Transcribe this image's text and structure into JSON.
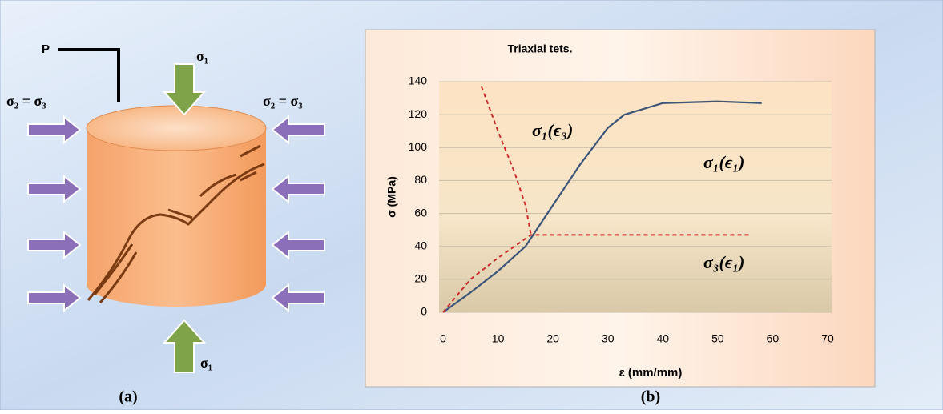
{
  "diagram": {
    "pressure_label": "P",
    "top_load": "σ₁",
    "bottom_load": "σ₁",
    "left_confining": "σ₂ =  σ₃",
    "right_confining": "σ₂ =  σ₃"
  },
  "captions": [
    "(a)",
    "(b)"
  ],
  "chart_data": {
    "type": "line",
    "title": "Triaxial tets.",
    "xlabel": "ε (mm/mm)",
    "ylabel": "σ (MPa)",
    "xlim": [
      0,
      70
    ],
    "xticks": [
      0,
      10,
      20,
      30,
      40,
      50,
      60,
      70
    ],
    "ylim": [
      0,
      140
    ],
    "yticks": [
      0,
      20,
      40,
      60,
      80,
      100,
      120,
      140
    ],
    "grid": true,
    "series": [
      {
        "name": "σ₁(ϵ₁)",
        "color": "#3b5478",
        "dash": false,
        "x": [
          0,
          5,
          10,
          15,
          20,
          25,
          30,
          33,
          40,
          50,
          58
        ],
        "values": [
          0,
          12,
          25,
          40,
          65,
          90,
          112,
          120,
          127,
          128,
          127
        ]
      },
      {
        "name": "σ₃(ϵ₁)",
        "color": "#cc2b2b",
        "dash": true,
        "x": [
          0,
          5,
          10,
          16,
          30,
          56
        ],
        "values": [
          0,
          20,
          33,
          47,
          47,
          47
        ]
      },
      {
        "name": "σ₁(ϵ₃)",
        "color": "#cc2b2b",
        "dash": true,
        "x": [
          7,
          10,
          13,
          15,
          16
        ],
        "values": [
          137,
          110,
          85,
          65,
          47
        ]
      }
    ]
  }
}
